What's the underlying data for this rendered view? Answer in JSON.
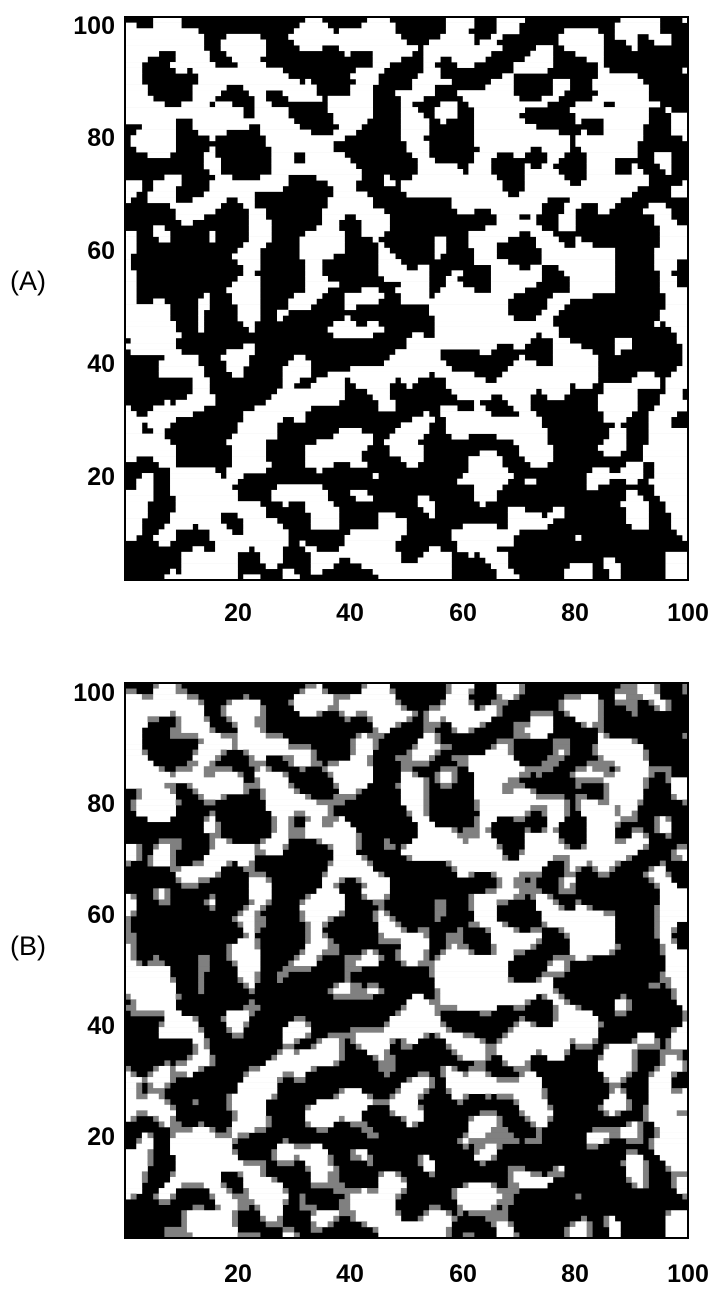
{
  "chart_data": [
    {
      "type": "heatmap",
      "panel_label": "(A)",
      "title": "",
      "xlabel": "",
      "ylabel": "",
      "xlim": [
        0,
        100
      ],
      "ylim": [
        0,
        100
      ],
      "grid_size": 100,
      "x_ticks": [
        "20",
        "40",
        "60",
        "80",
        "100"
      ],
      "y_ticks": [
        "20",
        "40",
        "60",
        "80",
        "100"
      ],
      "grid": false,
      "legend": "none",
      "colors": [
        "#000000",
        "#ffffff"
      ],
      "description_values": "binary lattice of black (0) and white (1) cells, roughly 45% white",
      "white_fraction": 0.45,
      "gray_fraction": 0,
      "seed": 17
    },
    {
      "type": "heatmap",
      "panel_label": "(B)",
      "title": "",
      "xlabel": "",
      "ylabel": "",
      "xlim": [
        0,
        100
      ],
      "ylim": [
        0,
        100
      ],
      "grid_size": 100,
      "x_ticks": [
        "20",
        "40",
        "60",
        "80",
        "100"
      ],
      "y_ticks": [
        "20",
        "40",
        "60",
        "80",
        "100"
      ],
      "grid": false,
      "legend": "none",
      "colors": [
        "#000000",
        "#ffffff",
        "#808080"
      ],
      "white_fraction": 0.33,
      "gray_fraction": 0.14,
      "seed": 17
    }
  ]
}
